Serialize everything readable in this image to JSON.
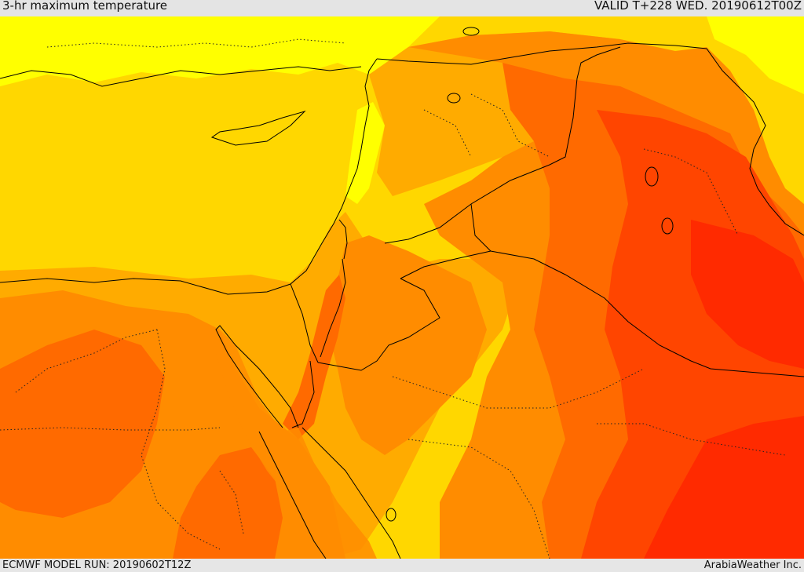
{
  "header": {
    "title": "3-hr maximum temperature",
    "valid": "VALID T+228 WED. 20190612T00Z"
  },
  "footer": {
    "model_run": "ECMWF MODEL RUN: 20190602T12Z",
    "credit": "ArabiaWeather Inc."
  },
  "map": {
    "palette": {
      "light_yellow": "#ffff00",
      "yellow": "#ffd700",
      "orange_yellow": "#ffab00",
      "orange": "#ff8c00",
      "dark_orange": "#ff6a00",
      "red_orange": "#ff4500",
      "red": "#ff2a00"
    }
  }
}
